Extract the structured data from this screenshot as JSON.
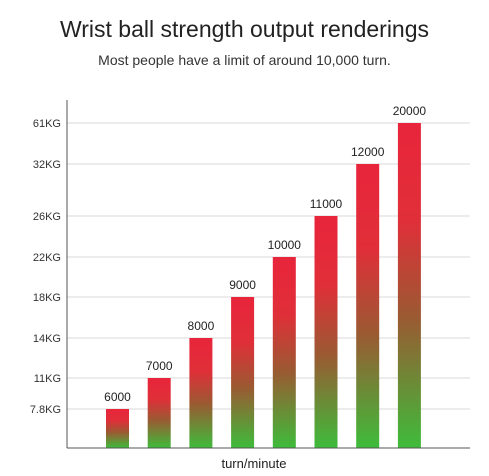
{
  "chart_data": {
    "type": "bar",
    "title": "Wrist ball strength output renderings",
    "subtitle": "Most people have a limit of around 10,000 turn.",
    "xlabel": "turn/minute",
    "ylabel": "",
    "y_axis_type": "categorical",
    "y_ticks": [
      "7.8KG",
      "11KG",
      "14KG",
      "18KG",
      "22KG",
      "26KG",
      "32KG",
      "61KG"
    ],
    "categories": [
      "6000",
      "7000",
      "8000",
      "9000",
      "10000",
      "11000",
      "12000",
      "20000"
    ],
    "values": [
      "7.8KG",
      "11KG",
      "14KG",
      "18KG",
      "22KG",
      "26KG",
      "32KG",
      "61KG"
    ],
    "data_labels": [
      "6000",
      "7000",
      "8000",
      "9000",
      "10000",
      "11000",
      "12000",
      "20000"
    ],
    "grid": true,
    "legend": "none",
    "colors": {
      "bar_top": "#e8253b",
      "bar_mid": "#9a5a32",
      "bar_bottom": "#3ebc3b",
      "grid": "#d9d9d9",
      "axis": "#555555"
    }
  }
}
